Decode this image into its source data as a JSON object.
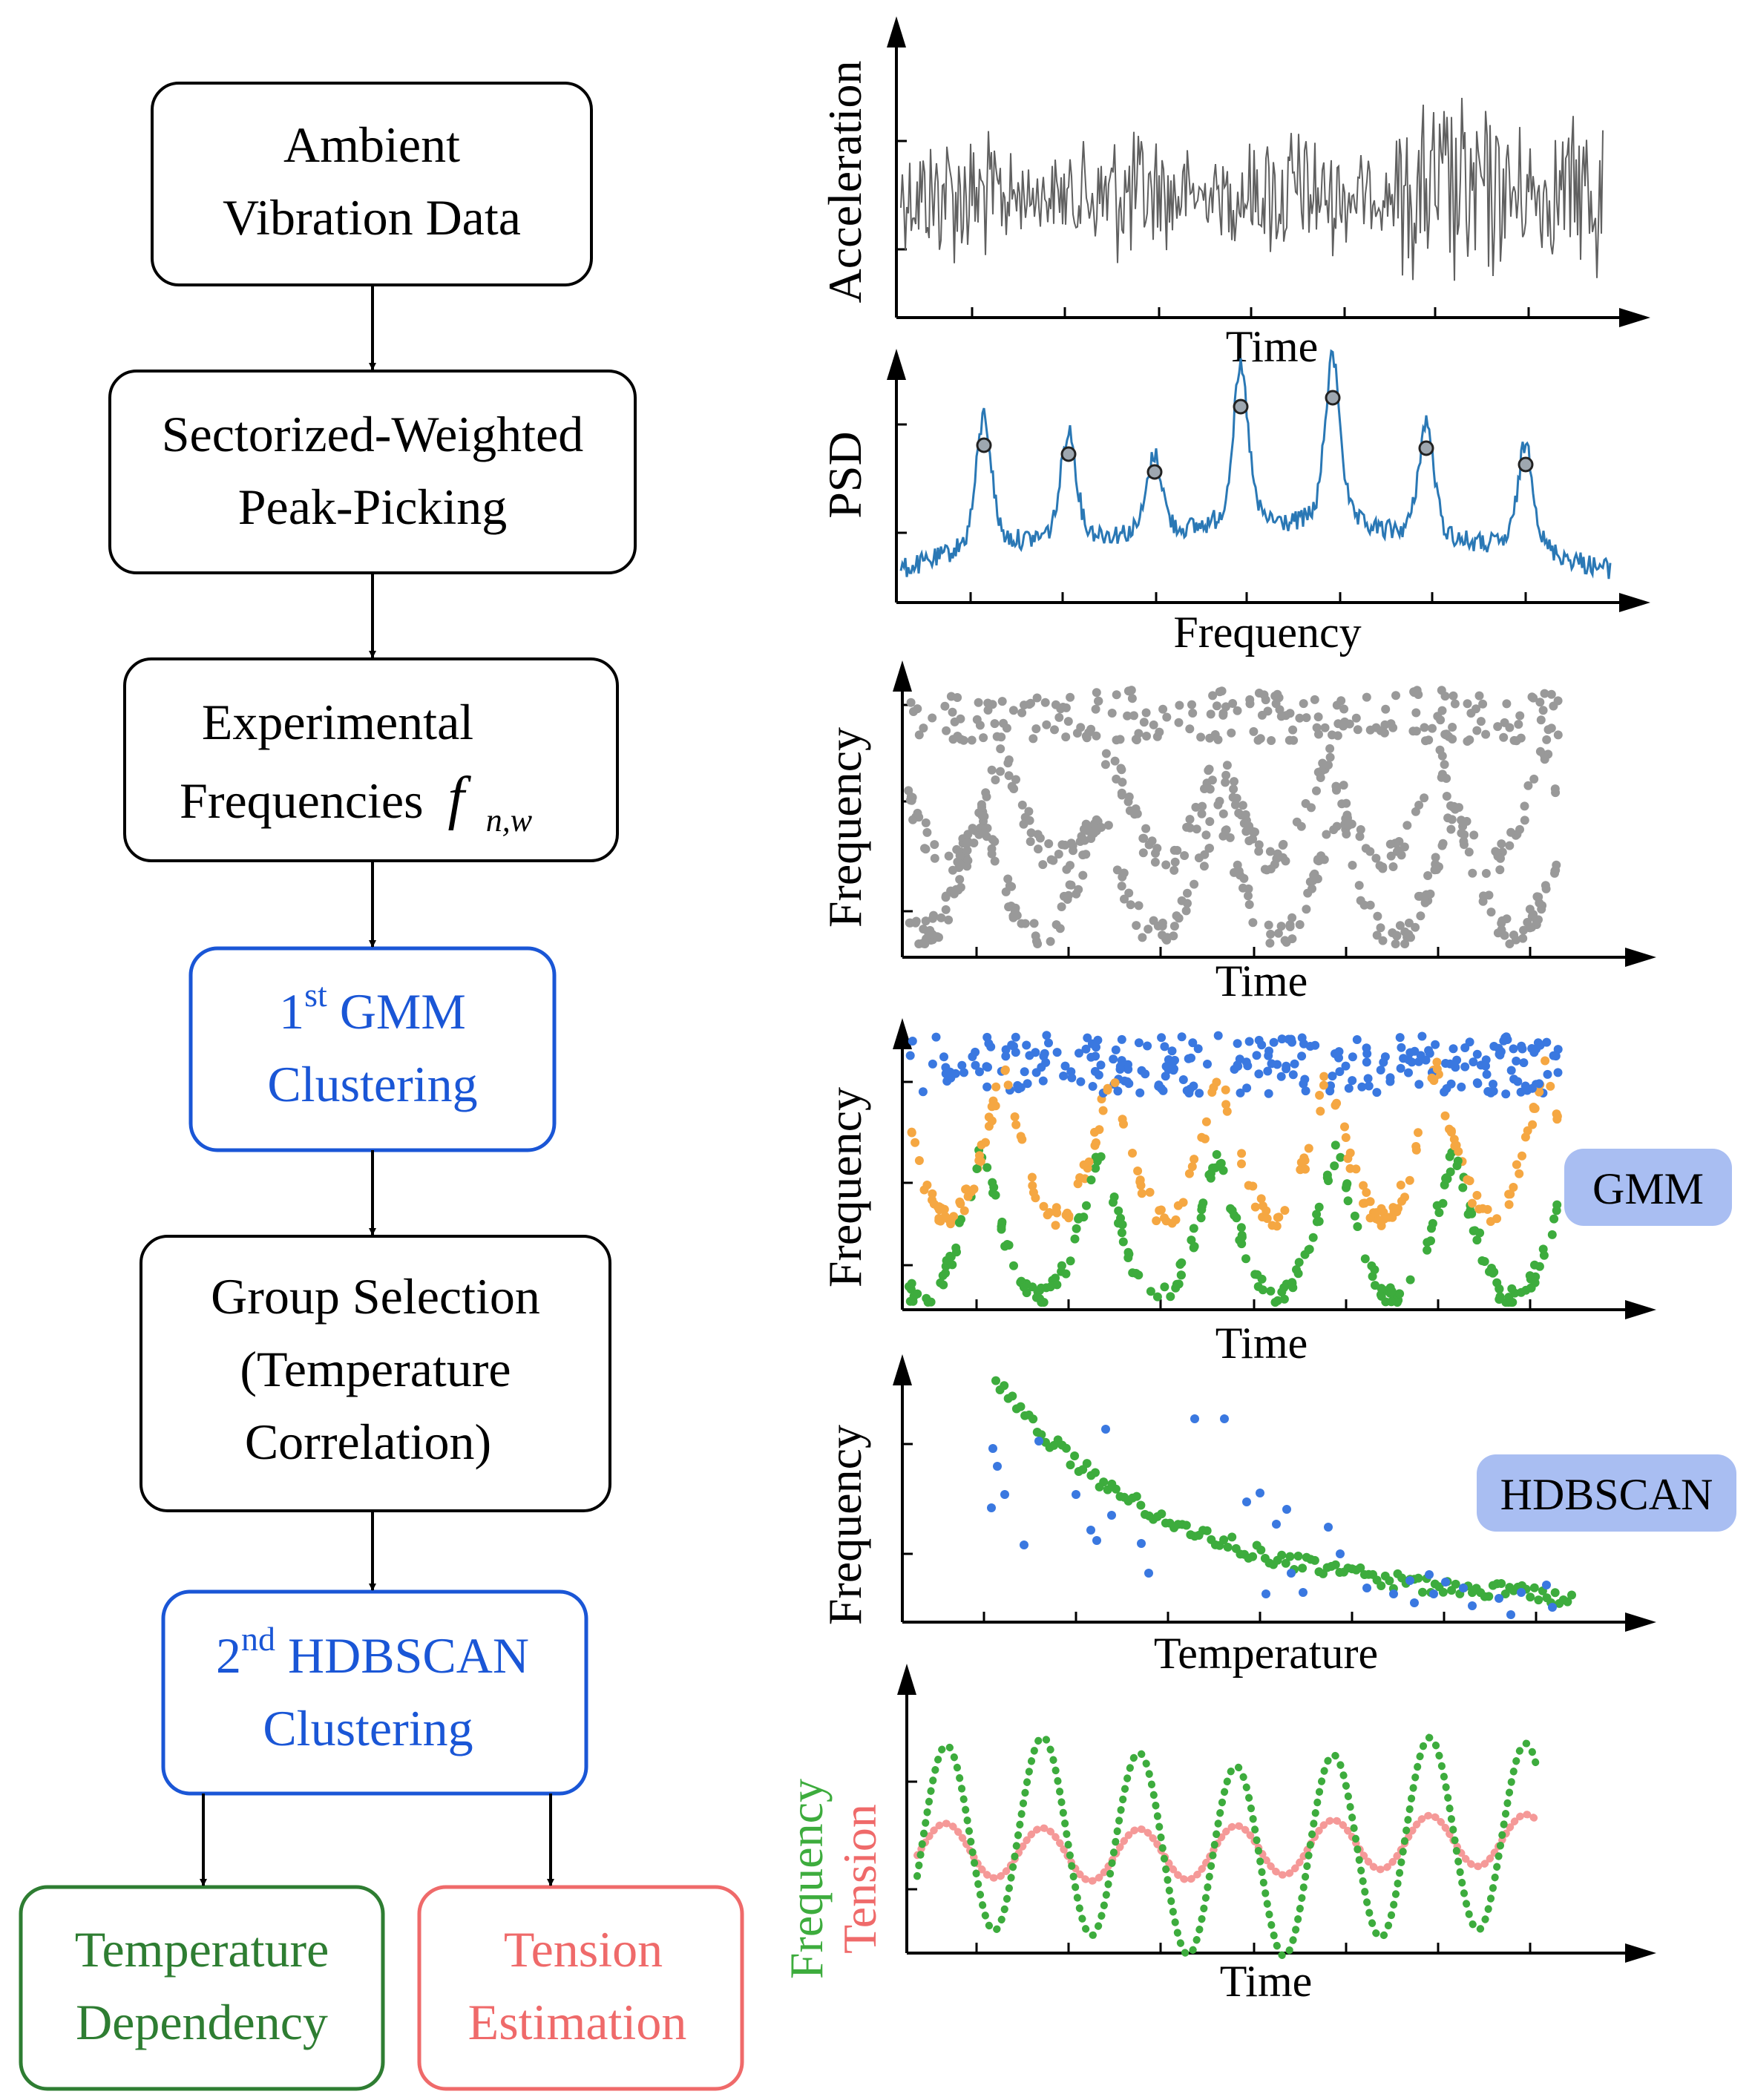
{
  "flowchart": {
    "boxes": [
      {
        "lines": [
          "Ambient",
          "Vibration Data"
        ],
        "color": "#000000"
      },
      {
        "lines": [
          "Sectorized-Weighted",
          "Peak-Picking"
        ],
        "color": "#000000"
      },
      {
        "line1": "Experimental",
        "line2_text": "Frequencies",
        "line2_symbol": "f",
        "line2_subscript": "n,w",
        "color": "#000000"
      },
      {
        "ordinal_number": "1",
        "ordinal_suffix": "st",
        "title_rest": " GMM",
        "line2": "Clustering",
        "color": "#1a56d6"
      },
      {
        "lines": [
          "Group Selection",
          "(Temperature",
          "Correlation)"
        ],
        "color": "#000000"
      },
      {
        "ordinal_number": "2",
        "ordinal_suffix": "nd",
        "title_rest": " HDBSCAN",
        "line2": "Clustering",
        "color": "#1a56d6"
      },
      {
        "lines": [
          "Temperature",
          "Dependency"
        ],
        "color": "#2e7d32"
      },
      {
        "lines": [
          "Tension",
          "Estimation"
        ],
        "color": "#ef6a6a"
      }
    ]
  },
  "panels": {
    "acceleration": {
      "ylabel": "Acceleration",
      "xlabel": "Time",
      "line_color": "#606060"
    },
    "psd": {
      "ylabel": "PSD",
      "xlabel": "Frequency",
      "line_color": "#2a78b5",
      "peak_count": 7
    },
    "raw_frequencies": {
      "ylabel": "Frequency",
      "xlabel": "Time",
      "point_color": "#999999"
    },
    "gmm": {
      "ylabel": "Frequency",
      "xlabel": "Time",
      "badge": "GMM",
      "colors": [
        "#3a78e0",
        "#f5a742",
        "#3dac3d"
      ]
    },
    "hdbscan": {
      "ylabel": "Frequency",
      "xlabel": "Temperature",
      "badge": "HDBSCAN",
      "colors": [
        "#3dac3d",
        "#3a78e0"
      ]
    },
    "tension": {
      "ylabel_top": "Frequency",
      "ylabel_bottom": "Tension",
      "xlabel": "Time",
      "colors": [
        "#3dac3d",
        "#f2807e"
      ]
    }
  },
  "badge_color": "#a9bef2"
}
